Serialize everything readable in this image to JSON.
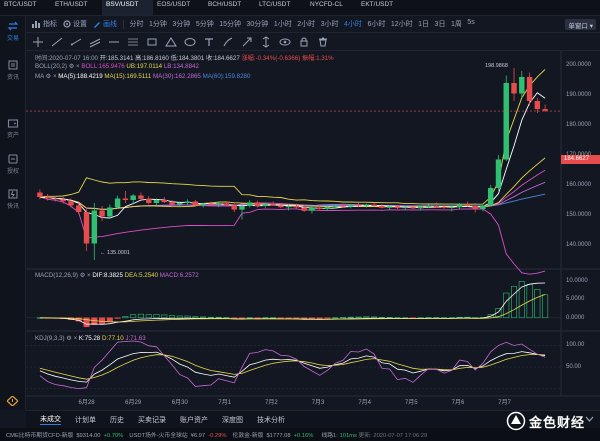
{
  "tickers": [
    {
      "symbol": "BTC/USDT",
      "sub": "",
      "active": false
    },
    {
      "symbol": "ETH/USDT",
      "sub": "",
      "active": false
    },
    {
      "symbol": "BSV/USDT",
      "sub": "",
      "active": true
    },
    {
      "symbol": "EOS/USDT",
      "sub": "",
      "active": false
    },
    {
      "symbol": "BCH/USDT",
      "sub": "",
      "active": false
    },
    {
      "symbol": "LTC/USDT",
      "sub": "",
      "active": false
    },
    {
      "symbol": "NYCFD-CL",
      "sub": "",
      "active": false
    },
    {
      "symbol": "EKT/USDT",
      "sub": "",
      "active": false
    }
  ],
  "sidebar": [
    {
      "label": "交易",
      "icon": "exchange-icon",
      "active": true
    },
    {
      "label": "资讯",
      "icon": "news-icon",
      "active": false
    },
    {
      "label": "资产",
      "icon": "wallet-icon",
      "active": false
    },
    {
      "label": "授权",
      "icon": "key-icon",
      "active": false
    },
    {
      "label": "快讯",
      "icon": "flash-news-icon",
      "active": false
    }
  ],
  "toolbar": {
    "indicator_label": "指标",
    "settings_label": "设置",
    "draw_label": "画线",
    "timeframes": [
      "分时",
      "1分钟",
      "3分钟",
      "5分钟",
      "15分钟",
      "30分钟",
      "1小时",
      "2小时",
      "3小时",
      "4小时",
      "6小时",
      "12小时",
      "1日",
      "3日",
      "1周",
      "5s"
    ],
    "active_timeframe": "4小时",
    "single_window": "单窗口"
  },
  "legend": {
    "ohlc": {
      "time": "时间:2020-07-07 16:00",
      "open": "开:185.3141",
      "high": "高:186.8160",
      "low": "低:184.3801",
      "close": "收:184.6627",
      "change": "涨幅:-0.34%(-0.6366)",
      "amplitude": "振幅:1.31%"
    },
    "boll": {
      "name": "BOLL(20,2)",
      "mid": "BOLL:165.9476",
      "ub": "UB:197.0114",
      "lb": "LB:134.8842"
    },
    "ma": {
      "name": "MA",
      "ma5": "MA(5):188.4219",
      "ma15": "MA(15):169.5111",
      "ma30": "MA(30):162.2865",
      "ma60": "MA(60):159.8280"
    },
    "macd": {
      "name": "MACD(12,26,9)",
      "dif": "DIF:8.3825",
      "dea": "DEA:5.2540",
      "macd": "MACD:6.2572"
    },
    "kdj": {
      "name": "KDJ(9,3,3)",
      "k": "K:75.28",
      "d": "D:77.10",
      "j": "J:71.63"
    }
  },
  "chart_data": {
    "type": "candlestick",
    "x_tick_labels": [
      "6月28",
      "6月29",
      "6月30",
      "7月1",
      "7月2",
      "7月3",
      "7月4",
      "7月5",
      "7月6",
      "7月7"
    ],
    "y_ticks_price": [
      "200.0000",
      "190.0000",
      "180.0000",
      "170.0000",
      "160.0000",
      "150.0000",
      "140.0000"
    ],
    "y_ticks_macd": [
      "10.0000",
      "5.0000",
      "0.0000"
    ],
    "y_ticks_kdj": [
      "100.00",
      "50.00"
    ],
    "ylim_price": [
      132,
      204
    ],
    "last_price": "184.6627",
    "annotations": {
      "high": "198.9868",
      "low": "135.0001"
    },
    "series_price": [
      [
        157.5,
        158.5,
        155.2,
        156.0
      ],
      [
        156.0,
        157.0,
        154.8,
        155.5
      ],
      [
        155.5,
        156.4,
        154.5,
        155.2
      ],
      [
        155.2,
        156.0,
        153.8,
        154.6
      ],
      [
        154.6,
        155.5,
        152.5,
        153.2
      ],
      [
        153.2,
        154.2,
        150.2,
        151.0
      ],
      [
        151.0,
        152.5,
        138.0,
        140.5
      ],
      [
        140.5,
        154.0,
        135.0,
        151.5
      ],
      [
        151.5,
        153.0,
        148.0,
        149.5
      ],
      [
        149.5,
        153.5,
        149.0,
        152.5
      ],
      [
        152.5,
        156.5,
        152.0,
        155.5
      ],
      [
        155.5,
        158.0,
        154.0,
        155.0
      ],
      [
        155.0,
        157.0,
        153.5,
        156.5
      ],
      [
        156.5,
        157.5,
        155.0,
        155.4
      ],
      [
        155.4,
        156.2,
        153.5,
        154.0
      ],
      [
        154.0,
        155.5,
        153.2,
        155.0
      ],
      [
        155.0,
        156.0,
        154.0,
        154.3
      ],
      [
        154.3,
        155.0,
        152.5,
        153.5
      ],
      [
        153.5,
        154.5,
        152.8,
        154.0
      ],
      [
        154.0,
        155.2,
        153.5,
        154.5
      ],
      [
        154.5,
        155.0,
        152.8,
        153.2
      ],
      [
        153.2,
        154.0,
        152.5,
        153.8
      ],
      [
        153.8,
        154.5,
        153.0,
        153.4
      ],
      [
        153.4,
        154.2,
        152.6,
        153.9
      ],
      [
        153.9,
        154.6,
        153.0,
        153.3
      ],
      [
        153.3,
        154.2,
        151.0,
        151.8
      ],
      [
        151.8,
        153.5,
        148.5,
        153.0
      ],
      [
        153.0,
        155.0,
        152.5,
        154.2
      ],
      [
        154.2,
        154.8,
        152.5,
        153.0
      ],
      [
        153.0,
        154.0,
        152.4,
        153.6
      ],
      [
        153.6,
        154.5,
        153.0,
        153.2
      ],
      [
        153.2,
        154.0,
        152.3,
        152.6
      ],
      [
        152.6,
        153.5,
        151.5,
        153.0
      ],
      [
        153.0,
        153.8,
        152.2,
        152.5
      ],
      [
        152.5,
        153.4,
        151.0,
        151.4
      ],
      [
        151.4,
        152.8,
        150.5,
        152.4
      ],
      [
        152.4,
        153.2,
        151.6,
        152.0
      ],
      [
        152.0,
        153.0,
        151.5,
        152.7
      ],
      [
        152.7,
        153.6,
        152.1,
        153.2
      ],
      [
        153.2,
        153.8,
        152.4,
        152.8
      ],
      [
        152.8,
        153.6,
        152.2,
        153.4
      ],
      [
        153.4,
        154.0,
        152.8,
        153.1
      ],
      [
        153.1,
        153.8,
        152.5,
        153.5
      ],
      [
        153.5,
        154.2,
        152.9,
        153.0
      ],
      [
        153.0,
        153.6,
        152.2,
        152.4
      ],
      [
        152.4,
        153.2,
        151.8,
        152.9
      ],
      [
        152.9,
        153.4,
        152.0,
        152.3
      ],
      [
        152.3,
        153.0,
        151.6,
        152.6
      ],
      [
        152.6,
        153.3,
        152.0,
        152.2
      ],
      [
        152.2,
        153.0,
        151.5,
        152.8
      ],
      [
        152.8,
        153.5,
        152.3,
        153.0
      ],
      [
        153.0,
        154.2,
        152.6,
        152.7
      ],
      [
        152.7,
        153.3,
        152.0,
        152.4
      ],
      [
        152.4,
        153.0,
        151.2,
        152.6
      ],
      [
        152.6,
        154.0,
        152.0,
        153.4
      ],
      [
        153.4,
        154.5,
        152.8,
        153.0
      ],
      [
        153.0,
        154.0,
        150.8,
        152.0
      ],
      [
        152.0,
        153.4,
        151.2,
        153.2
      ],
      [
        153.2,
        160.0,
        152.8,
        159.0
      ],
      [
        159.0,
        170.0,
        158.0,
        168.5
      ],
      [
        168.5,
        196.5,
        168.0,
        194.0
      ],
      [
        194.0,
        199.0,
        188.0,
        190.5
      ],
      [
        190.5,
        198.0,
        189.0,
        196.0
      ],
      [
        196.0,
        197.5,
        186.5,
        188.0
      ],
      [
        188.0,
        189.0,
        184.0,
        185.3
      ],
      [
        185.3,
        186.8,
        184.4,
        184.7
      ]
    ]
  },
  "tabs": [
    "未成交",
    "计划单",
    "历史",
    "买卖记录",
    "账户资产",
    "深度图",
    "技术分析"
  ],
  "status": [
    {
      "text": "CME比特币期货CFD-新版",
      "value": "$9314.00",
      "change": "+0.70%",
      "dir": "up"
    },
    {
      "text": "USDT场外-火币全球站",
      "value": "¥6.97",
      "change": "-0.29%",
      "dir": "dn"
    },
    {
      "text": "伦敦金-新版",
      "value": "$1777.08",
      "change": "+0.16%",
      "dir": "up"
    }
  ],
  "status_right": {
    "line_label": "线路1:",
    "latency": "101ms",
    "update": "更新: 2020-07-07 17:06:29"
  },
  "brand": "金色财经",
  "colors": {
    "up": "#2fbf71",
    "down": "#e74c4c",
    "accent": "#2f7fe0",
    "ma5": "#ffffff",
    "ma15": "#e8d84a",
    "ma30": "#c46bd6",
    "ma60": "#4a88d8",
    "boll": "#d94fc9",
    "ub": "#e8d84a",
    "kdj_k": "#ffffff",
    "kdj_d": "#e8d84a",
    "kdj_j": "#c46bd6"
  }
}
